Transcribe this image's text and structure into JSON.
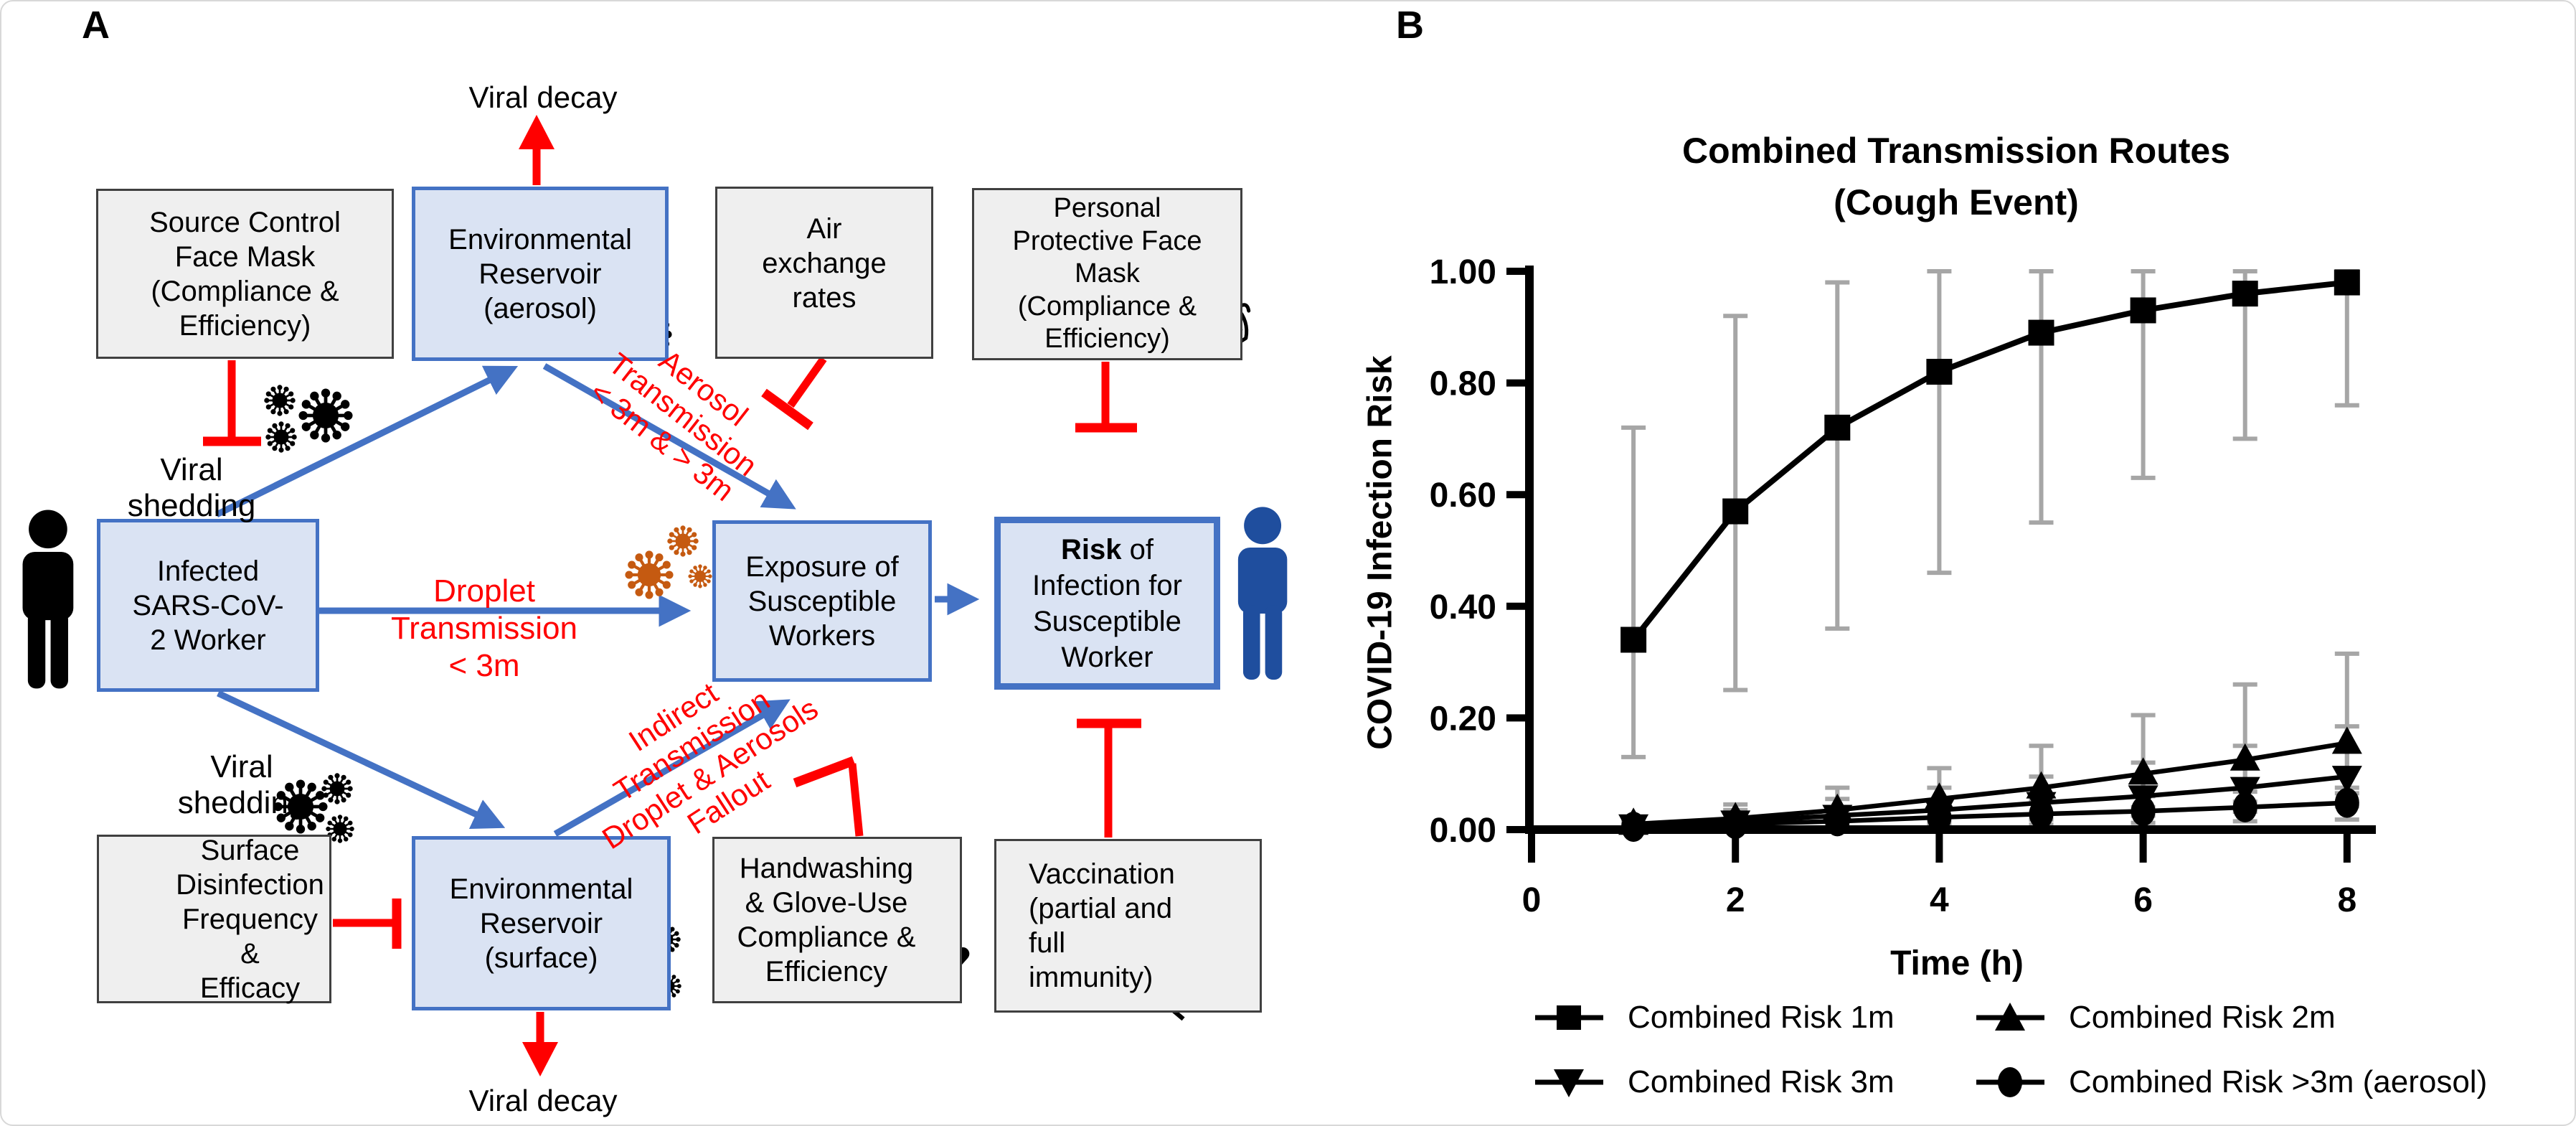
{
  "figure": {
    "panel_a_label": "A",
    "panel_b_label": "B"
  },
  "panel_a": {
    "boxes": {
      "source_control": {
        "text": "Source Control\nFace Mask\n(Compliance &\nEfficiency)"
      },
      "env_aerosol": {
        "text": "Environmental\nReservoir\n(aerosol)"
      },
      "air_exchange": {
        "text": "Air\nexchange\nrates"
      },
      "ppe_mask": {
        "text": "Personal\nProtective Face\nMask\n(Compliance &\nEfficiency)"
      },
      "infected": {
        "text": "Infected\nSARS-CoV-\n2 Worker"
      },
      "exposure": {
        "text": "Exposure of\nSusceptible\nWorkers"
      },
      "risk": {
        "bold": "Risk",
        "suffix": " of",
        "lines": "Infection for\nSusceptible\nWorker"
      },
      "surface_disinfection": {
        "text": "Surface\nDisinfection\nFrequency &\nEfficacy"
      },
      "env_surface": {
        "text": "Environmental\nReservoir\n(surface)"
      },
      "handwashing": {
        "text": "Handwashing\n& Glove-Use\nCompliance &\nEfficiency"
      },
      "vaccination": {
        "text": "Vaccination\n(partial and full\nimmunity)"
      }
    },
    "labels": {
      "viral_decay_top": "Viral decay",
      "viral_decay_bottom": "Viral decay",
      "viral_shedding_top": "Viral shedding",
      "viral_shedding_bottom": "Viral shedding",
      "droplet_transmission": "Droplet Transmission\n< 3m",
      "aerosol_transmission": "Aerosol\nTransmission\n< 3m & > 3m",
      "indirect_transmission": "Indirect\nTransmission\nDroplet & Aerosols\nFallout"
    },
    "icons": [
      "face-mask-icon",
      "virus-icon",
      "air-wind-cloud-icon",
      "spray-bottle-icon",
      "hand-icon",
      "syringe-icon",
      "person-icon"
    ],
    "colors": {
      "blue_box_fill": "#dae3f3",
      "blue_border": "#4472c4",
      "gray_box_fill": "#efefef",
      "gray_border": "#404040",
      "inhibit_red": "#ff0000",
      "virus_black": "#000000",
      "virus_orange": "#c55a11",
      "person_black": "#000000",
      "person_blue": "#1f4e9e"
    }
  },
  "chart_data": {
    "type": "line",
    "title": "Combined Transmission Routes",
    "subtitle": "(Cough  Event)",
    "xlabel": "Time (h)",
    "ylabel": "COVID-19 Infection Risk",
    "xlim": [
      0,
      8.3
    ],
    "ylim": [
      0,
      1.0
    ],
    "xticks": [
      0,
      2,
      4,
      6,
      8
    ],
    "ytick_values": [
      0,
      0.2,
      0.4,
      0.6,
      0.8,
      1.0
    ],
    "ytick_labels": [
      "0.00",
      "0.20",
      "0.40",
      "0.60",
      "0.80",
      "1.00"
    ],
    "grid": false,
    "legend_position": "bottom",
    "error_bar_color": "#a6a6a6",
    "x": [
      1,
      2,
      3,
      4,
      5,
      6,
      7,
      8
    ],
    "series": [
      {
        "name": "Combined Risk 1m",
        "marker": "square",
        "values": [
          0.34,
          0.57,
          0.72,
          0.82,
          0.89,
          0.93,
          0.96,
          0.98
        ],
        "err_lo": [
          0.13,
          0.25,
          0.36,
          0.46,
          0.55,
          0.63,
          0.7,
          0.76
        ],
        "err_hi": [
          0.72,
          0.92,
          0.98,
          1.0,
          1.0,
          1.0,
          1.0,
          1.0
        ]
      },
      {
        "name": "Combined Risk 2m",
        "marker": "triangle-up",
        "values": [
          0.01,
          0.02,
          0.035,
          0.055,
          0.075,
          0.1,
          0.125,
          0.155
        ],
        "err_lo": [
          0.002,
          0.005,
          0.01,
          0.02,
          0.03,
          0.04,
          0.05,
          0.065
        ],
        "err_hi": [
          0.02,
          0.045,
          0.075,
          0.11,
          0.15,
          0.205,
          0.26,
          0.315
        ]
      },
      {
        "name": "Combined Risk 3m",
        "marker": "triangle-down",
        "values": [
          0.008,
          0.015,
          0.025,
          0.035,
          0.048,
          0.06,
          0.075,
          0.095
        ],
        "err_lo": [
          0.001,
          0.004,
          0.008,
          0.012,
          0.018,
          0.025,
          0.032,
          0.042
        ],
        "err_hi": [
          0.015,
          0.035,
          0.055,
          0.075,
          0.095,
          0.12,
          0.15,
          0.185
        ]
      },
      {
        "name": "Combined Risk >3m (aerosol)",
        "marker": "circle",
        "values": [
          0.005,
          0.01,
          0.015,
          0.022,
          0.028,
          0.033,
          0.04,
          0.048
        ],
        "err_lo": [
          0.001,
          0.002,
          0.004,
          0.006,
          0.009,
          0.012,
          0.015,
          0.018
        ],
        "err_hi": [
          0.01,
          0.02,
          0.03,
          0.042,
          0.052,
          0.06,
          0.068,
          0.075
        ]
      }
    ]
  }
}
